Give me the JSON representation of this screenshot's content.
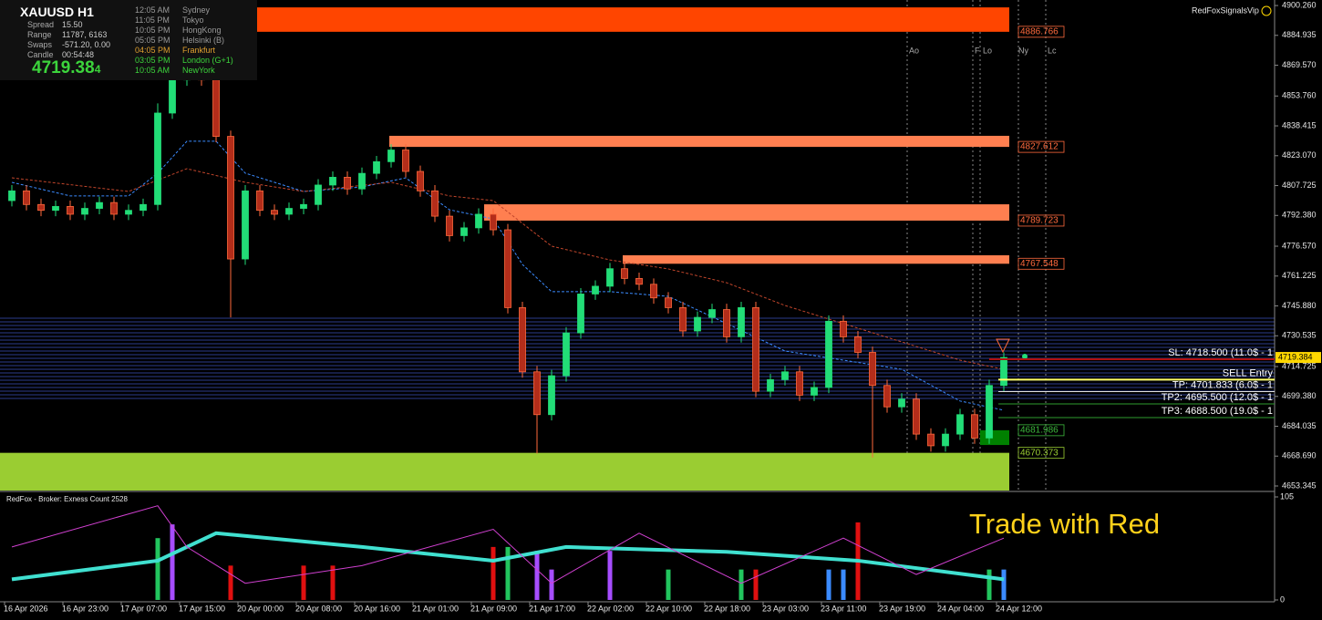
{
  "info_panel": {
    "symbol": "XAUUSD  H1",
    "rows": [
      [
        "Spread",
        "15.50"
      ],
      [
        "Range",
        "11787, 6163"
      ],
      [
        "Swaps",
        "-571.20, 0.00"
      ],
      [
        "Candle",
        "00:54:48"
      ]
    ],
    "price_main": "4719.38",
    "price_last_digit": "4",
    "sessions": [
      [
        "12:05 AM",
        "Sydney"
      ],
      [
        "11:05 PM",
        "Tokyo"
      ],
      [
        "10:05 PM",
        "HongKong"
      ],
      [
        "05:05 PM",
        "Helsinki (B)"
      ],
      [
        "04:05 PM",
        "Frankfurt"
      ],
      [
        "03:05 PM",
        "London (G+1)"
      ],
      [
        "10:05 AM",
        "NewYork"
      ]
    ]
  },
  "brand": "RedFoxSignalsVip",
  "watermark": "Trade with Red",
  "session_markers": [
    "Ao",
    "F",
    "Lo",
    "Ny",
    "Lc"
  ],
  "chart_data": {
    "type": "candlestick",
    "colors": {
      "up": "#22dd77",
      "down": "#b32d1a",
      "down_edge": "#ff6a3d"
    },
    "categories": [
      "16 Apr 2026",
      null,
      null,
      null,
      "16 Apr 23:00",
      null,
      null,
      null,
      "17 Apr 07:00",
      null,
      null,
      null,
      "17 Apr 15:00",
      null,
      null,
      null,
      "20 Apr 00:00",
      null,
      null,
      null,
      "20 Apr 08:00",
      null,
      null,
      null,
      "20 Apr 16:00",
      null,
      null,
      null,
      "21 Apr 01:00",
      null,
      null,
      null,
      "21 Apr 09:00",
      null,
      null,
      null,
      "21 Apr 17:00",
      null,
      null,
      null,
      "22 Apr 02:00",
      null,
      null,
      null,
      "22 Apr 10:00",
      null,
      null,
      null,
      "22 Apr 18:00",
      null,
      null,
      null,
      "23 Apr 03:00",
      null,
      null,
      null,
      "23 Apr 11:00",
      null,
      null,
      null,
      "23 Apr 19:00",
      null,
      null,
      null,
      "24 Apr 04:00",
      null,
      null,
      null,
      "24 Apr 12:00"
    ],
    "open": [
      4800,
      4805,
      4798,
      4795,
      4797,
      4793,
      4796,
      4799,
      4793,
      4795,
      4798,
      4845,
      4862,
      4866,
      4862,
      4833,
      4770,
      4805,
      4795,
      4793,
      4796,
      4798,
      4808,
      4812,
      4806,
      4814,
      4820,
      4826,
      4815,
      4805,
      4792,
      4782,
      4786,
      4793,
      4785,
      4745,
      4712,
      4690,
      4710,
      4732,
      4752,
      4756,
      4765,
      4760,
      4757,
      4750,
      4745,
      4733,
      4740,
      4744,
      4730,
      4745,
      4702,
      4708,
      4712,
      4700,
      4704,
      4738,
      4730,
      4722,
      4705,
      4694,
      4698,
      4680,
      4674,
      4680,
      4690,
      4678,
      4705
    ],
    "high": [
      4808,
      4808,
      4801,
      4800,
      4800,
      4799,
      4802,
      4802,
      4798,
      4801,
      4850,
      4868,
      4875,
      4869,
      4865,
      4836,
      4808,
      4808,
      4798,
      4799,
      4801,
      4811,
      4815,
      4815,
      4817,
      4823,
      4829,
      4829,
      4818,
      4808,
      4795,
      4789,
      4796,
      4796,
      4788,
      4748,
      4715,
      4713,
      4735,
      4755,
      4759,
      4768,
      4768,
      4763,
      4760,
      4753,
      4748,
      4743,
      4747,
      4747,
      4748,
      4748,
      4711,
      4715,
      4715,
      4707,
      4741,
      4741,
      4733,
      4725,
      4708,
      4701,
      4701,
      4683,
      4683,
      4693,
      4693,
      4708,
      4722
    ],
    "low": [
      4797,
      4795,
      4792,
      4792,
      4790,
      4790,
      4793,
      4790,
      4790,
      4792,
      4795,
      4842,
      4859,
      4859,
      4830,
      4740,
      4767,
      4792,
      4790,
      4790,
      4793,
      4795,
      4805,
      4803,
      4803,
      4811,
      4817,
      4812,
      4802,
      4789,
      4779,
      4779,
      4783,
      4782,
      4742,
      4709,
      4670,
      4687,
      4707,
      4729,
      4749,
      4753,
      4757,
      4754,
      4747,
      4742,
      4730,
      4730,
      4737,
      4727,
      4727,
      4699,
      4699,
      4705,
      4697,
      4697,
      4701,
      4727,
      4719,
      4668,
      4691,
      4691,
      4677,
      4671,
      4671,
      4677,
      4675,
      4675,
      4702
    ],
    "close": [
      4805,
      4798,
      4795,
      4797,
      4793,
      4796,
      4799,
      4793,
      4795,
      4798,
      4845,
      4862,
      4866,
      4862,
      4833,
      4770,
      4805,
      4795,
      4793,
      4796,
      4798,
      4808,
      4812,
      4806,
      4814,
      4820,
      4826,
      4815,
      4805,
      4792,
      4782,
      4786,
      4793,
      4785,
      4745,
      4712,
      4690,
      4710,
      4732,
      4752,
      4756,
      4765,
      4760,
      4757,
      4750,
      4745,
      4733,
      4740,
      4744,
      4730,
      4745,
      4702,
      4708,
      4712,
      4700,
      4704,
      4738,
      4730,
      4722,
      4705,
      4694,
      4698,
      4680,
      4674,
      4680,
      4690,
      4678,
      4705,
      4719.384
    ],
    "ylim": [
      4651.0,
      4903.1
    ],
    "yticks": [
      {
        "value": 4900.26,
        "label": "4900.260"
      },
      4884.935,
      {
        "value": 4869.57,
        "label": "4869.570"
      },
      {
        "value": 4853.76,
        "label": "4853.760"
      },
      4838.415,
      {
        "value": 4823.07,
        "label": "4823.070"
      },
      4807.725,
      {
        "value": 4792.38,
        "label": "4792.380"
      },
      {
        "value": 4776.57,
        "label": "4776.570"
      },
      4761.225,
      {
        "value": 4745.88,
        "label": "4745.880"
      },
      4730.535,
      4714.725,
      {
        "value": 4699.38,
        "label": "4699.380"
      },
      4684.035,
      {
        "value": 4668.69,
        "label": "4668.690"
      },
      4653.345
    ],
    "moving_averages": [
      {
        "color": "#3b8bff",
        "x": [
          0,
          4,
          8,
          10,
          12,
          14,
          16,
          20,
          24,
          27,
          30,
          33,
          35,
          37,
          41,
          45,
          49,
          53,
          57,
          61,
          65,
          68
        ],
        "values": [
          4809.4,
          4802.4,
          4802.4,
          4814.1,
          4830.5,
          4830.5,
          4814.1,
          4804.7,
          4807,
          4811.7,
          4795.3,
          4790.6,
          4767.2,
          4753.2,
          4753.2,
          4750.8,
          4736.8,
          4722.7,
          4718,
          4713.3,
          4697,
          4692.3
        ]
      },
      {
        "color": "#c0452b",
        "x": [
          0,
          8,
          12,
          16,
          20,
          26,
          30,
          33,
          37,
          41,
          45,
          49,
          53,
          57,
          61,
          65,
          68
        ],
        "values": [
          4811.7,
          4804.7,
          4816.4,
          4809.4,
          4804.7,
          4809.4,
          4802.4,
          4800,
          4776.6,
          4769.5,
          4764.9,
          4757.8,
          4746.1,
          4736.8,
          4727.4,
          4718,
          4713.3
        ]
      }
    ],
    "zones": [
      {
        "level": 4886.766,
        "edge": 4899.3,
        "color": "#ff4500",
        "text_color": "#ff6a3d"
      },
      {
        "level": 4827.612,
        "edge": 4833.3,
        "color": "#ff7f50",
        "text_color": "#ff6a3d"
      },
      {
        "level": 4789.723,
        "edge": 4798.1,
        "color": "#ff7f50",
        "text_color": "#ff6a3d"
      },
      {
        "level": 4767.548,
        "edge": 4771.9,
        "color": "#ff7f50",
        "text_color": "#ff6a3d"
      },
      {
        "level": 4681.986,
        "edge": 4674.4,
        "color": "#008000",
        "text_color": "#3cb83c"
      },
      {
        "level": 4670.373,
        "edge": 4651.0,
        "color": "#9acd32",
        "text_color": "#9acd32"
      }
    ],
    "trade_lines": [
      {
        "text": "SL: 4718.500 (11.0$ - 1",
        "level": 4718.5,
        "color": "#b01010"
      },
      {
        "text": "SELL Entry",
        "level": 4708,
        "color": "#ffff66"
      },
      {
        "text": "TP: 4701.833 (6.0$ - 1",
        "level": 4701.833,
        "color": "#e0e0e0"
      },
      {
        "text": "TP2: 4695.500 (12.0$ - 1",
        "level": 4695.5,
        "color": "#2e9b2e"
      },
      {
        "text": "TP3: 4688.500 (19.0$ - 1",
        "level": 4688.5,
        "color": "#2e9b2e"
      }
    ],
    "current_price": 4719.384,
    "sub_panel": {
      "title": "RedFox -  Broker: Exness    Count  2528",
      "ylim": [
        0,
        105
      ],
      "yticks": [
        0,
        105
      ],
      "bars": [
        null,
        null,
        null,
        null,
        null,
        null,
        null,
        null,
        null,
        null,
        63,
        77,
        null,
        null,
        null,
        35,
        null,
        null,
        null,
        null,
        35,
        null,
        35,
        null,
        null,
        null,
        null,
        null,
        null,
        null,
        null,
        null,
        null,
        54,
        54,
        null,
        50,
        31,
        null,
        null,
        null,
        50,
        null,
        null,
        null,
        31,
        null,
        null,
        null,
        null,
        31,
        31,
        null,
        null,
        null,
        null,
        31,
        31,
        79,
        null,
        null,
        null,
        null,
        null,
        null,
        null,
        null,
        31,
        31
      ],
      "bar_colors": [
        null,
        null,
        null,
        null,
        null,
        null,
        null,
        null,
        null,
        null,
        "#22c55e",
        "#a64dff",
        null,
        null,
        null,
        "#e01010",
        null,
        null,
        null,
        null,
        "#e01010",
        null,
        "#e01010",
        null,
        null,
        null,
        null,
        null,
        null,
        null,
        null,
        null,
        null,
        "#e01010",
        "#22c55e",
        null,
        "#a64dff",
        "#a64dff",
        null,
        null,
        null,
        "#a64dff",
        null,
        null,
        null,
        "#22c55e",
        null,
        null,
        null,
        null,
        "#22c55e",
        "#e01010",
        null,
        null,
        null,
        null,
        "#3b8bff",
        "#3b8bff",
        "#e01010",
        null,
        null,
        null,
        null,
        null,
        null,
        null,
        null,
        "#22c55e",
        "#3b8bff"
      ],
      "lines": [
        {
          "color": "#40e0d0",
          "x": [
            0,
            10,
            14,
            24,
            33,
            38,
            49,
            58,
            68
          ],
          "values": [
            21,
            40,
            68,
            54,
            40,
            54,
            49,
            40,
            21
          ]
        },
        {
          "color": "#d040d0",
          "x": [
            0,
            10,
            12,
            16,
            24,
            33,
            37,
            43,
            50,
            57,
            62,
            68
          ],
          "values": [
            54,
            96,
            54,
            17,
            35,
            72,
            17,
            68,
            17,
            63,
            26,
            63
          ]
        }
      ]
    }
  }
}
